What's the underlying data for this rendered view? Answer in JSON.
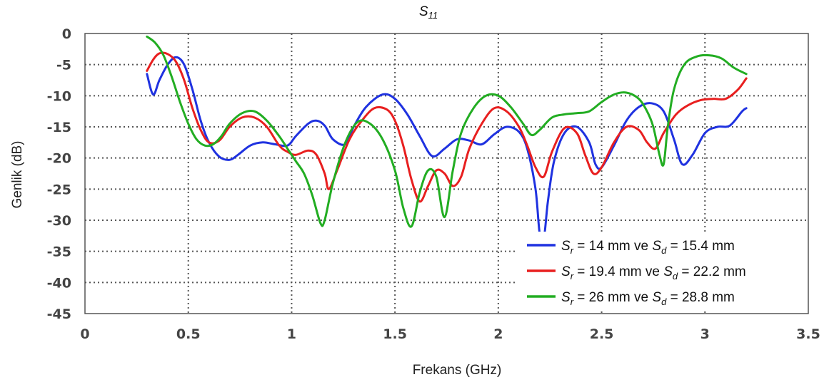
{
  "chart_data": {
    "type": "line",
    "title": {
      "main": "S",
      "sub": "11"
    },
    "xlabel": "Frekans (GHz)",
    "ylabel": "Genlik (dB)",
    "xlim": [
      0,
      3.5
    ],
    "ylim": [
      -45,
      0
    ],
    "xticks": [
      0,
      0.5,
      1,
      1.5,
      2,
      2.5,
      3,
      3.5
    ],
    "xtick_labels": [
      "0",
      "0.5",
      "1",
      "1.5",
      "2",
      "2.5",
      "3",
      "3.5"
    ],
    "yticks": [
      0,
      -5,
      -10,
      -15,
      -20,
      -25,
      -30,
      -35,
      -40,
      -45
    ],
    "ytick_labels": [
      "0",
      "-5",
      "-10",
      "-15",
      "-20",
      "-25",
      "-30",
      "-35",
      "-40",
      "-45"
    ],
    "grid": true,
    "grid_style": "dotted",
    "legend_position": "bottom-right",
    "series": [
      {
        "legend": {
          "a": "S",
          "a_sub": "r",
          "b": " = 14 mm ve ",
          "c": "S",
          "c_sub": "d",
          "d": " = 15.4 mm"
        },
        "color": "#1f32e0",
        "x": [
          0.3,
          0.33,
          0.36,
          0.4,
          0.44,
          0.48,
          0.52,
          0.56,
          0.6,
          0.65,
          0.7,
          0.74,
          0.8,
          0.86,
          0.92,
          0.98,
          1.02,
          1.08,
          1.12,
          1.16,
          1.2,
          1.26,
          1.3,
          1.36,
          1.44,
          1.5,
          1.56,
          1.62,
          1.68,
          1.74,
          1.8,
          1.86,
          1.92,
          1.98,
          2.04,
          2.1,
          2.14,
          2.18,
          2.2,
          2.22,
          2.24,
          2.27,
          2.32,
          2.38,
          2.44,
          2.47,
          2.5,
          2.56,
          2.62,
          2.68,
          2.74,
          2.8,
          2.85,
          2.89,
          2.94,
          3.0,
          3.06,
          3.12,
          3.18,
          3.2
        ],
        "y": [
          -6.5,
          -9.8,
          -7.5,
          -5.0,
          -3.8,
          -5.0,
          -9.0,
          -14.0,
          -17.5,
          -19.8,
          -20.3,
          -19.5,
          -18.0,
          -17.5,
          -17.8,
          -18.0,
          -16.5,
          -14.5,
          -14.0,
          -14.8,
          -17.0,
          -17.8,
          -15.0,
          -11.8,
          -9.8,
          -10.5,
          -13.0,
          -16.5,
          -19.7,
          -18.5,
          -17.0,
          -17.2,
          -17.8,
          -16.2,
          -15.0,
          -15.8,
          -18.5,
          -25.0,
          -32.0,
          -33.0,
          -27.0,
          -20.5,
          -16.0,
          -15.0,
          -17.5,
          -21.0,
          -21.5,
          -18.0,
          -14.0,
          -11.8,
          -11.2,
          -12.5,
          -17.0,
          -21.0,
          -19.5,
          -16.0,
          -15.0,
          -14.8,
          -12.5,
          -12.0
        ]
      },
      {
        "legend": {
          "a": "S",
          "a_sub": "r",
          "b": " = 19.4 mm ve ",
          "c": "S",
          "c_sub": "d",
          "d": " = 22.2 mm"
        },
        "color": "#e81f1f",
        "x": [
          0.3,
          0.33,
          0.36,
          0.4,
          0.44,
          0.48,
          0.52,
          0.56,
          0.6,
          0.65,
          0.7,
          0.76,
          0.82,
          0.88,
          0.94,
          0.98,
          1.02,
          1.08,
          1.12,
          1.16,
          1.18,
          1.22,
          1.28,
          1.34,
          1.4,
          1.46,
          1.5,
          1.54,
          1.58,
          1.62,
          1.66,
          1.7,
          1.74,
          1.78,
          1.82,
          1.86,
          1.92,
          1.98,
          2.04,
          2.1,
          2.14,
          2.18,
          2.22,
          2.26,
          2.32,
          2.38,
          2.42,
          2.46,
          2.5,
          2.56,
          2.62,
          2.68,
          2.72,
          2.76,
          2.8,
          2.86,
          2.92,
          2.98,
          3.04,
          3.1,
          3.16,
          3.2
        ],
        "y": [
          -6.0,
          -4.2,
          -3.2,
          -3.3,
          -4.5,
          -7.5,
          -12.0,
          -15.5,
          -17.5,
          -17.2,
          -15.0,
          -13.5,
          -13.5,
          -15.0,
          -18.0,
          -19.0,
          -19.5,
          -18.8,
          -19.5,
          -22.5,
          -25.0,
          -22.0,
          -17.0,
          -14.0,
          -12.0,
          -12.2,
          -14.0,
          -18.0,
          -23.5,
          -27.0,
          -24.5,
          -22.0,
          -22.5,
          -24.5,
          -23.0,
          -18.5,
          -14.5,
          -12.0,
          -12.5,
          -15.0,
          -18.0,
          -21.5,
          -23.0,
          -19.0,
          -15.2,
          -16.0,
          -19.5,
          -22.5,
          -21.5,
          -17.5,
          -15.0,
          -15.5,
          -17.5,
          -18.5,
          -16.0,
          -13.0,
          -11.5,
          -10.7,
          -10.5,
          -10.5,
          -9.0,
          -7.2
        ]
      },
      {
        "legend": {
          "a": "S",
          "a_sub": "r",
          "b": " = 26 mm ve ",
          "c": "S",
          "c_sub": "d",
          "d": " = 28.8 mm"
        },
        "color": "#22ad22",
        "x": [
          0.3,
          0.34,
          0.38,
          0.42,
          0.46,
          0.5,
          0.54,
          0.58,
          0.62,
          0.66,
          0.7,
          0.76,
          0.82,
          0.88,
          0.94,
          0.98,
          1.02,
          1.06,
          1.1,
          1.14,
          1.16,
          1.2,
          1.26,
          1.32,
          1.38,
          1.44,
          1.5,
          1.54,
          1.58,
          1.62,
          1.66,
          1.7,
          1.74,
          1.78,
          1.82,
          1.88,
          1.94,
          2.0,
          2.06,
          2.12,
          2.16,
          2.2,
          2.26,
          2.32,
          2.38,
          2.44,
          2.5,
          2.56,
          2.62,
          2.68,
          2.72,
          2.75,
          2.78,
          2.8,
          2.82,
          2.85,
          2.9,
          2.96,
          3.02,
          3.08,
          3.14,
          3.2
        ],
        "y": [
          -0.5,
          -1.5,
          -3.5,
          -7.0,
          -11.0,
          -14.5,
          -17.0,
          -18.0,
          -17.8,
          -16.5,
          -14.5,
          -12.8,
          -12.5,
          -14.0,
          -16.5,
          -18.5,
          -20.5,
          -22.5,
          -26.0,
          -30.5,
          -30.0,
          -24.0,
          -17.5,
          -14.2,
          -14.5,
          -17.0,
          -22.0,
          -28.0,
          -31.0,
          -25.5,
          -22.0,
          -23.0,
          -29.5,
          -22.0,
          -16.0,
          -12.0,
          -10.0,
          -10.0,
          -11.8,
          -14.5,
          -16.3,
          -15.5,
          -13.5,
          -13.0,
          -12.8,
          -12.5,
          -11.0,
          -9.8,
          -9.5,
          -10.5,
          -12.5,
          -15.0,
          -19.5,
          -21.0,
          -15.0,
          -9.0,
          -5.0,
          -3.7,
          -3.5,
          -4.0,
          -5.5,
          -6.5
        ]
      }
    ]
  }
}
